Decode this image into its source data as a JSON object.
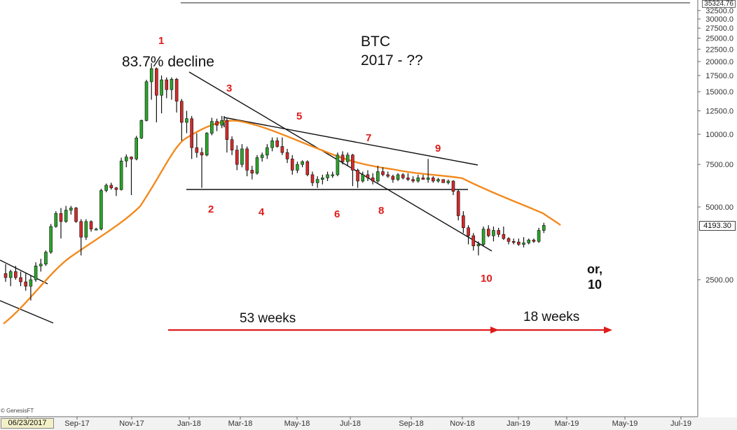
{
  "chart_data": {
    "type": "candlestick",
    "title": "BTC",
    "subtitle": "2017 - ??",
    "yscale": "log",
    "yticks": [
      "35324.76",
      "32500.0",
      "30000.0",
      "27500.0",
      "25000.0",
      "22500.0",
      "20000.0",
      "17500.0",
      "15000.0",
      "12500.0",
      "10000.0",
      "7500.00",
      "5000.00",
      "2500.00"
    ],
    "xticks": [
      "06/23/2017",
      "Sep-17",
      "Nov-17",
      "Jan-18",
      "Mar-18",
      "May-18",
      "Jul-18",
      "Sep-18",
      "Nov-18",
      "Jan-19",
      "Mar-19",
      "May-19",
      "Jul-19"
    ],
    "last_price_label": "4193.30",
    "top_value_label": "35324.76",
    "start_date_label": "06/23/2017",
    "watermark": "© GenesisFT",
    "moving_average": "orange",
    "candles": [
      [
        2650,
        2900,
        2450,
        2550
      ],
      [
        2550,
        2750,
        2350,
        2700
      ],
      [
        2700,
        2850,
        2500,
        2550
      ],
      [
        2550,
        2700,
        2350,
        2450
      ],
      [
        2450,
        2650,
        2250,
        2350
      ],
      [
        2350,
        2600,
        2050,
        2500
      ],
      [
        2500,
        2950,
        2450,
        2850
      ],
      [
        2850,
        3050,
        2700,
        2900
      ],
      [
        2900,
        3300,
        2850,
        3250
      ],
      [
        3250,
        4250,
        3200,
        4150
      ],
      [
        4150,
        4800,
        4100,
        4700
      ],
      [
        4700,
        4950,
        3700,
        4350
      ],
      [
        4350,
        5050,
        4300,
        4850
      ],
      [
        4850,
        5050,
        4650,
        4950
      ],
      [
        4950,
        5000,
        4300,
        4350
      ],
      [
        4350,
        4450,
        3150,
        3750
      ],
      [
        3750,
        4450,
        3650,
        4350
      ],
      [
        4350,
        4400,
        3950,
        4050
      ],
      [
        4050,
        4100,
        4000,
        4050
      ],
      [
        4050,
        5950,
        4000,
        5850
      ],
      [
        5850,
        6250,
        5750,
        6150
      ],
      [
        6150,
        6300,
        5900,
        6000
      ],
      [
        6000,
        6050,
        5550,
        5900
      ],
      [
        5900,
        8000,
        5850,
        7750
      ],
      [
        7750,
        8250,
        7300,
        8050
      ],
      [
        8050,
        8100,
        5600,
        7900
      ],
      [
        7900,
        9850,
        7800,
        9650
      ],
      [
        9650,
        11500,
        9550,
        11400
      ],
      [
        11400,
        16800,
        11300,
        16500
      ],
      [
        16500,
        19700,
        13900,
        18700
      ],
      [
        18700,
        18900,
        11200,
        14500
      ],
      [
        14500,
        17500,
        12200,
        16800
      ],
      [
        16800,
        17200,
        14100,
        15300
      ],
      [
        15300,
        17200,
        13900,
        16900
      ],
      [
        16900,
        17100,
        12300,
        13700
      ],
      [
        13700,
        14000,
        9400,
        11200
      ],
      [
        11200,
        12500,
        10100,
        11600
      ],
      [
        11600,
        11900,
        7900,
        8800
      ],
      [
        8800,
        10100,
        8000,
        8400
      ],
      [
        8400,
        8800,
        6000,
        8200
      ],
      [
        8200,
        10200,
        8100,
        10100
      ],
      [
        10100,
        11700,
        9900,
        11300
      ],
      [
        11300,
        11600,
        10300,
        10900
      ],
      [
        10900,
        11900,
        10600,
        11400
      ],
      [
        11400,
        11600,
        8400,
        9500
      ],
      [
        9500,
        9800,
        8200,
        8600
      ],
      [
        8600,
        9000,
        7100,
        7500
      ],
      [
        7500,
        9100,
        7300,
        8700
      ],
      [
        8700,
        8900,
        6700,
        7100
      ],
      [
        7100,
        7400,
        6500,
        6900
      ],
      [
        6900,
        8200,
        6800,
        8000
      ],
      [
        8000,
        8400,
        7700,
        8200
      ],
      [
        8200,
        9100,
        7900,
        8800
      ],
      [
        8800,
        9700,
        8500,
        9400
      ],
      [
        9400,
        9700,
        8800,
        8900
      ],
      [
        8900,
        9700,
        8200,
        8400
      ],
      [
        8400,
        8700,
        7600,
        7900
      ],
      [
        7900,
        8200,
        6800,
        7100
      ],
      [
        7100,
        7700,
        6900,
        7500
      ],
      [
        7500,
        7800,
        7300,
        7700
      ],
      [
        7700,
        7800,
        6700,
        6800
      ],
      [
        6800,
        7000,
        6100,
        6300
      ],
      [
        6300,
        6700,
        6000,
        6500
      ],
      [
        6500,
        6800,
        6200,
        6600
      ],
      [
        6600,
        7000,
        6400,
        6800
      ],
      [
        6800,
        7000,
        6600,
        6800
      ],
      [
        6800,
        8400,
        6700,
        8200
      ],
      [
        8200,
        8500,
        7500,
        7700
      ],
      [
        7700,
        8400,
        7400,
        8200
      ],
      [
        8200,
        8300,
        6100,
        7100
      ],
      [
        7100,
        7200,
        6000,
        6400
      ],
      [
        6400,
        7000,
        6300,
        6800
      ],
      [
        6800,
        7100,
        6400,
        6600
      ],
      [
        6600,
        6900,
        6200,
        6400
      ],
      [
        6400,
        7400,
        6300,
        7000
      ],
      [
        7000,
        7300,
        6700,
        6800
      ],
      [
        6800,
        7000,
        6600,
        6700
      ],
      [
        6700,
        6800,
        6300,
        6500
      ],
      [
        6500,
        6900,
        6400,
        6800
      ],
      [
        6800,
        6900,
        6500,
        6600
      ],
      [
        6600,
        6900,
        6400,
        6500
      ],
      [
        6500,
        6700,
        6300,
        6400
      ],
      [
        6400,
        6800,
        6300,
        6600
      ],
      [
        6600,
        6800,
        6500,
        6500
      ],
      [
        6500,
        7900,
        6300,
        6600
      ],
      [
        6600,
        6700,
        6300,
        6400
      ],
      [
        6400,
        6600,
        6300,
        6500
      ],
      [
        6500,
        6500,
        6300,
        6300
      ],
      [
        6300,
        6500,
        6200,
        6400
      ],
      [
        6400,
        6450,
        5600,
        5800
      ],
      [
        5800,
        5900,
        4400,
        4600
      ],
      [
        4600,
        4800,
        3900,
        4100
      ],
      [
        4100,
        4200,
        3500,
        3800
      ],
      [
        3800,
        3900,
        3300,
        3450
      ],
      [
        3450,
        3600,
        3150,
        3500
      ],
      [
        3500,
        4150,
        3450,
        4050
      ],
      [
        4050,
        4200,
        3750,
        3800
      ],
      [
        3800,
        4150,
        3600,
        4000
      ],
      [
        4000,
        4100,
        3750,
        3850
      ],
      [
        3850,
        4150,
        3650,
        3700
      ],
      [
        3700,
        3750,
        3500,
        3600
      ],
      [
        3600,
        3700,
        3500,
        3580
      ],
      [
        3580,
        3700,
        3450,
        3500
      ],
      [
        3500,
        3750,
        3400,
        3550
      ],
      [
        3550,
        3700,
        3500,
        3650
      ],
      [
        3650,
        3700,
        3550,
        3600
      ],
      [
        3600,
        4100,
        3550,
        4000
      ],
      [
        4000,
        4300,
        3900,
        4193.3
      ]
    ],
    "annotations": {
      "decline": "83.7% decline",
      "title": "BTC",
      "subtitle": "2017 - ??",
      "points": [
        "1",
        "2",
        "3",
        "4",
        "5",
        "6",
        "7",
        "8",
        "9",
        "10"
      ],
      "alt_label_1": "or,",
      "alt_label_2": "10",
      "span_1": "53 weeks",
      "span_2": "18 weeks"
    }
  }
}
